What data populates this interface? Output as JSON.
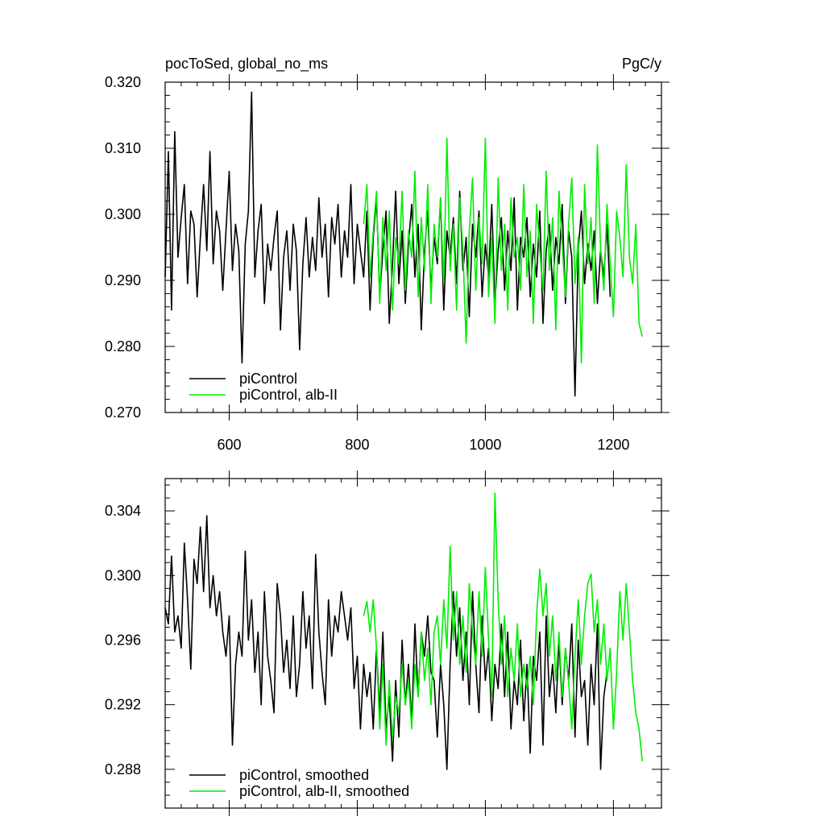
{
  "colors": {
    "piControl": "#000000",
    "alb_II": "#00ee00",
    "axis": "#000000",
    "background": "#ffffff"
  },
  "chart_data": [
    {
      "type": "line",
      "title_left": "pocToSed, global_no_ms",
      "title_right": "PgC/y",
      "xlim": [
        500,
        1275
      ],
      "ylim": [
        0.27,
        0.32
      ],
      "x_ticks": [
        600,
        800,
        1000,
        1200
      ],
      "x_tick_labels": [
        "600",
        "800",
        "1000",
        "1200"
      ],
      "y_ticks": [
        0.27,
        0.28,
        0.29,
        0.3,
        0.31,
        0.32
      ],
      "y_tick_labels": [
        "0.270",
        "0.280",
        "0.290",
        "0.300",
        "0.310",
        "0.320"
      ],
      "grid": false,
      "legend_position": "bottom-left",
      "series": [
        {
          "name": "piControl",
          "color_key": "piControl",
          "x_start": 500,
          "x_step": 5,
          "values": [
            0.2905,
            0.3095,
            0.2855,
            0.3125,
            0.2935,
            0.2995,
            0.3045,
            0.2895,
            0.3005,
            0.2985,
            0.2875,
            0.2965,
            0.3045,
            0.2945,
            0.3095,
            0.2925,
            0.3005,
            0.2975,
            0.2885,
            0.2975,
            0.3065,
            0.2915,
            0.2985,
            0.2945,
            0.2775,
            0.2955,
            0.3005,
            0.3185,
            0.2905,
            0.2975,
            0.3015,
            0.2865,
            0.2955,
            0.2915,
            0.2965,
            0.3005,
            0.2825,
            0.2935,
            0.2975,
            0.2885,
            0.2985,
            0.2945,
            0.2795,
            0.2925,
            0.2995,
            0.2905,
            0.2965,
            0.2915,
            0.3025,
            0.2935,
            0.2985,
            0.2875,
            0.2995,
            0.2955,
            0.3015,
            0.2905,
            0.2975,
            0.2935,
            0.3045,
            0.2895,
            0.2985,
            0.2945,
            0.2905,
            0.3005,
            0.2855,
            0.2965,
            0.3025,
            0.2875,
            0.2945,
            0.3005,
            0.2835,
            0.2925,
            0.3035,
            0.2895,
            0.2975,
            0.2865,
            0.2955,
            0.3015,
            0.2905,
            0.2985,
            0.2825,
            0.2945,
            0.3005,
            0.2885,
            0.2965,
            0.2925,
            0.3025,
            0.2855,
            0.2975,
            0.2935,
            0.2995,
            0.2895,
            0.3035,
            0.2915,
            0.2965,
            0.2845,
            0.2985,
            0.2935,
            0.3005,
            0.2875,
            0.2955,
            0.2905,
            0.3015,
            0.2865,
            0.2945,
            0.2995,
            0.2885,
            0.2975,
            0.2915,
            0.3025,
            0.2855,
            0.2965,
            0.2935,
            0.2995,
            0.2875,
            0.2955,
            0.2905,
            0.3005,
            0.2835,
            0.2945,
            0.2985,
            0.2885,
            0.2965,
            0.2925,
            0.3015,
            0.2865,
            0.2975,
            0.2935,
            0.2725,
            0.2945,
            0.3005,
            0.2895,
            0.2955,
            0.2915,
            0.2975,
            0.2865,
            0.2945,
            0.2905,
            0.2985,
            0.2875
          ]
        },
        {
          "name": "piControl, alb-II",
          "color_key": "alb_II",
          "x_start": 810,
          "x_step": 5,
          "values": [
            0.2985,
            0.3045,
            0.2905,
            0.2975,
            0.3035,
            0.2865,
            0.2995,
            0.2915,
            0.3005,
            0.2855,
            0.2965,
            0.2925,
            0.3035,
            0.2885,
            0.2975,
            0.2935,
            0.3065,
            0.2875,
            0.2995,
            0.2915,
            0.3045,
            0.2865,
            0.2985,
            0.2935,
            0.3025,
            0.2895,
            0.3115,
            0.2915,
            0.2985,
            0.2855,
            0.3025,
            0.2945,
            0.2805,
            0.2975,
            0.3055,
            0.2885,
            0.2995,
            0.2925,
            0.3115,
            0.2875,
            0.2965,
            0.2835,
            0.3055,
            0.2915,
            0.2985,
            0.2855,
            0.3025,
            0.2935,
            0.2965,
            0.2885,
            0.3045,
            0.2905,
            0.2975,
            0.2835,
            0.3015,
            0.2945,
            0.2885,
            0.3065,
            0.2915,
            0.2995,
            0.2825,
            0.3035,
            0.2955,
            0.2875,
            0.2985,
            0.3055,
            0.2895,
            0.2965,
            0.2775,
            0.3045,
            0.2925,
            0.2995,
            0.2865,
            0.3105,
            0.2945,
            0.2885,
            0.3015,
            0.2925,
            0.2845,
            0.3005,
            0.2965,
            0.2905,
            0.3075,
            0.2935,
            0.2895,
            0.2985,
            0.2835,
            0.2815
          ]
        }
      ],
      "legend": [
        "piControl",
        "piControl, alb-II"
      ]
    },
    {
      "type": "line",
      "xlim": [
        500,
        1275
      ],
      "ylim": [
        0.2856,
        0.306
      ],
      "x_ticks": [
        600,
        800,
        1000,
        1200
      ],
      "y_ticks": [
        0.288,
        0.292,
        0.296,
        0.3,
        0.304
      ],
      "y_tick_labels": [
        "0.288",
        "0.292",
        "0.296",
        "0.300",
        "0.304"
      ],
      "grid": false,
      "legend_position": "bottom-left",
      "series": [
        {
          "name": "piControl, smoothed",
          "color_key": "piControl",
          "x_start": 500,
          "x_step": 5,
          "values": [
            0.298,
            0.297,
            0.3012,
            0.2965,
            0.2975,
            0.2955,
            0.302,
            0.2985,
            0.2942,
            0.301,
            0.2995,
            0.303,
            0.299,
            0.3037,
            0.298,
            0.3,
            0.2975,
            0.299,
            0.2965,
            0.295,
            0.2975,
            0.2895,
            0.2945,
            0.2965,
            0.295,
            0.3015,
            0.296,
            0.2985,
            0.294,
            0.2965,
            0.292,
            0.299,
            0.295,
            0.2935,
            0.2915,
            0.2995,
            0.2975,
            0.294,
            0.296,
            0.293,
            0.2975,
            0.2925,
            0.2945,
            0.299,
            0.2955,
            0.2975,
            0.293,
            0.3013,
            0.2965,
            0.294,
            0.292,
            0.2985,
            0.295,
            0.2975,
            0.2965,
            0.299,
            0.2975,
            0.296,
            0.298,
            0.293,
            0.295,
            0.2905,
            0.2945,
            0.2925,
            0.294,
            0.2905,
            0.2955,
            0.2915,
            0.2965,
            0.2905,
            0.2925,
            0.2885,
            0.2935,
            0.29,
            0.296,
            0.292,
            0.2945,
            0.2908,
            0.297,
            0.2925,
            0.2965,
            0.295,
            0.2975,
            0.294,
            0.2935,
            0.29,
            0.2945,
            0.292,
            0.288,
            0.2945,
            0.299,
            0.295,
            0.298,
            0.2935,
            0.2965,
            0.292,
            0.299,
            0.2945,
            0.2915,
            0.2975,
            0.2935,
            0.2955,
            0.291,
            0.2945,
            0.293,
            0.297,
            0.2925,
            0.2965,
            0.2905,
            0.2935,
            0.292,
            0.296,
            0.291,
            0.2945,
            0.289,
            0.295,
            0.2935,
            0.2965,
            0.2895,
            0.2975,
            0.2925,
            0.2945,
            0.2915,
            0.296,
            0.292,
            0.2955,
            0.2935,
            0.297,
            0.29,
            0.296,
            0.2925,
            0.2935,
            0.2895,
            0.2945,
            0.292,
            0.297,
            0.288,
            0.2925,
            0.294
          ]
        },
        {
          "name": "piControl, alb-II, smoothed",
          "color_key": "alb_II",
          "x_start": 810,
          "x_step": 5,
          "values": [
            0.2975,
            0.2984,
            0.2965,
            0.2985,
            0.2955,
            0.2905,
            0.2945,
            0.2895,
            0.2935,
            0.29,
            0.2925,
            0.2915,
            0.2945,
            0.292,
            0.2935,
            0.2905,
            0.2945,
            0.2925,
            0.2965,
            0.2935,
            0.2955,
            0.292,
            0.2965,
            0.2975,
            0.2945,
            0.2985,
            0.2955,
            0.3018,
            0.296,
            0.299,
            0.2945,
            0.2975,
            0.294,
            0.2995,
            0.2965,
            0.2945,
            0.299,
            0.295,
            0.3005,
            0.296,
            0.2925,
            0.3051,
            0.2985,
            0.2945,
            0.2975,
            0.2925,
            0.2955,
            0.2935,
            0.297,
            0.2925,
            0.2945,
            0.293,
            0.295,
            0.292,
            0.2975,
            0.3004,
            0.2975,
            0.2995,
            0.295,
            0.2975,
            0.2935,
            0.2965,
            0.2925,
            0.2955,
            0.2935,
            0.2905,
            0.295,
            0.2985,
            0.2945,
            0.2975,
            0.2995,
            0.3001,
            0.2965,
            0.2985,
            0.2945,
            0.297,
            0.2935,
            0.2955,
            0.2905,
            0.294,
            0.299,
            0.296,
            0.2995,
            0.2965,
            0.2935,
            0.2915,
            0.2905,
            0.2885
          ]
        }
      ],
      "legend": [
        "piControl, smoothed",
        "piControl, alb-II, smoothed"
      ]
    }
  ]
}
